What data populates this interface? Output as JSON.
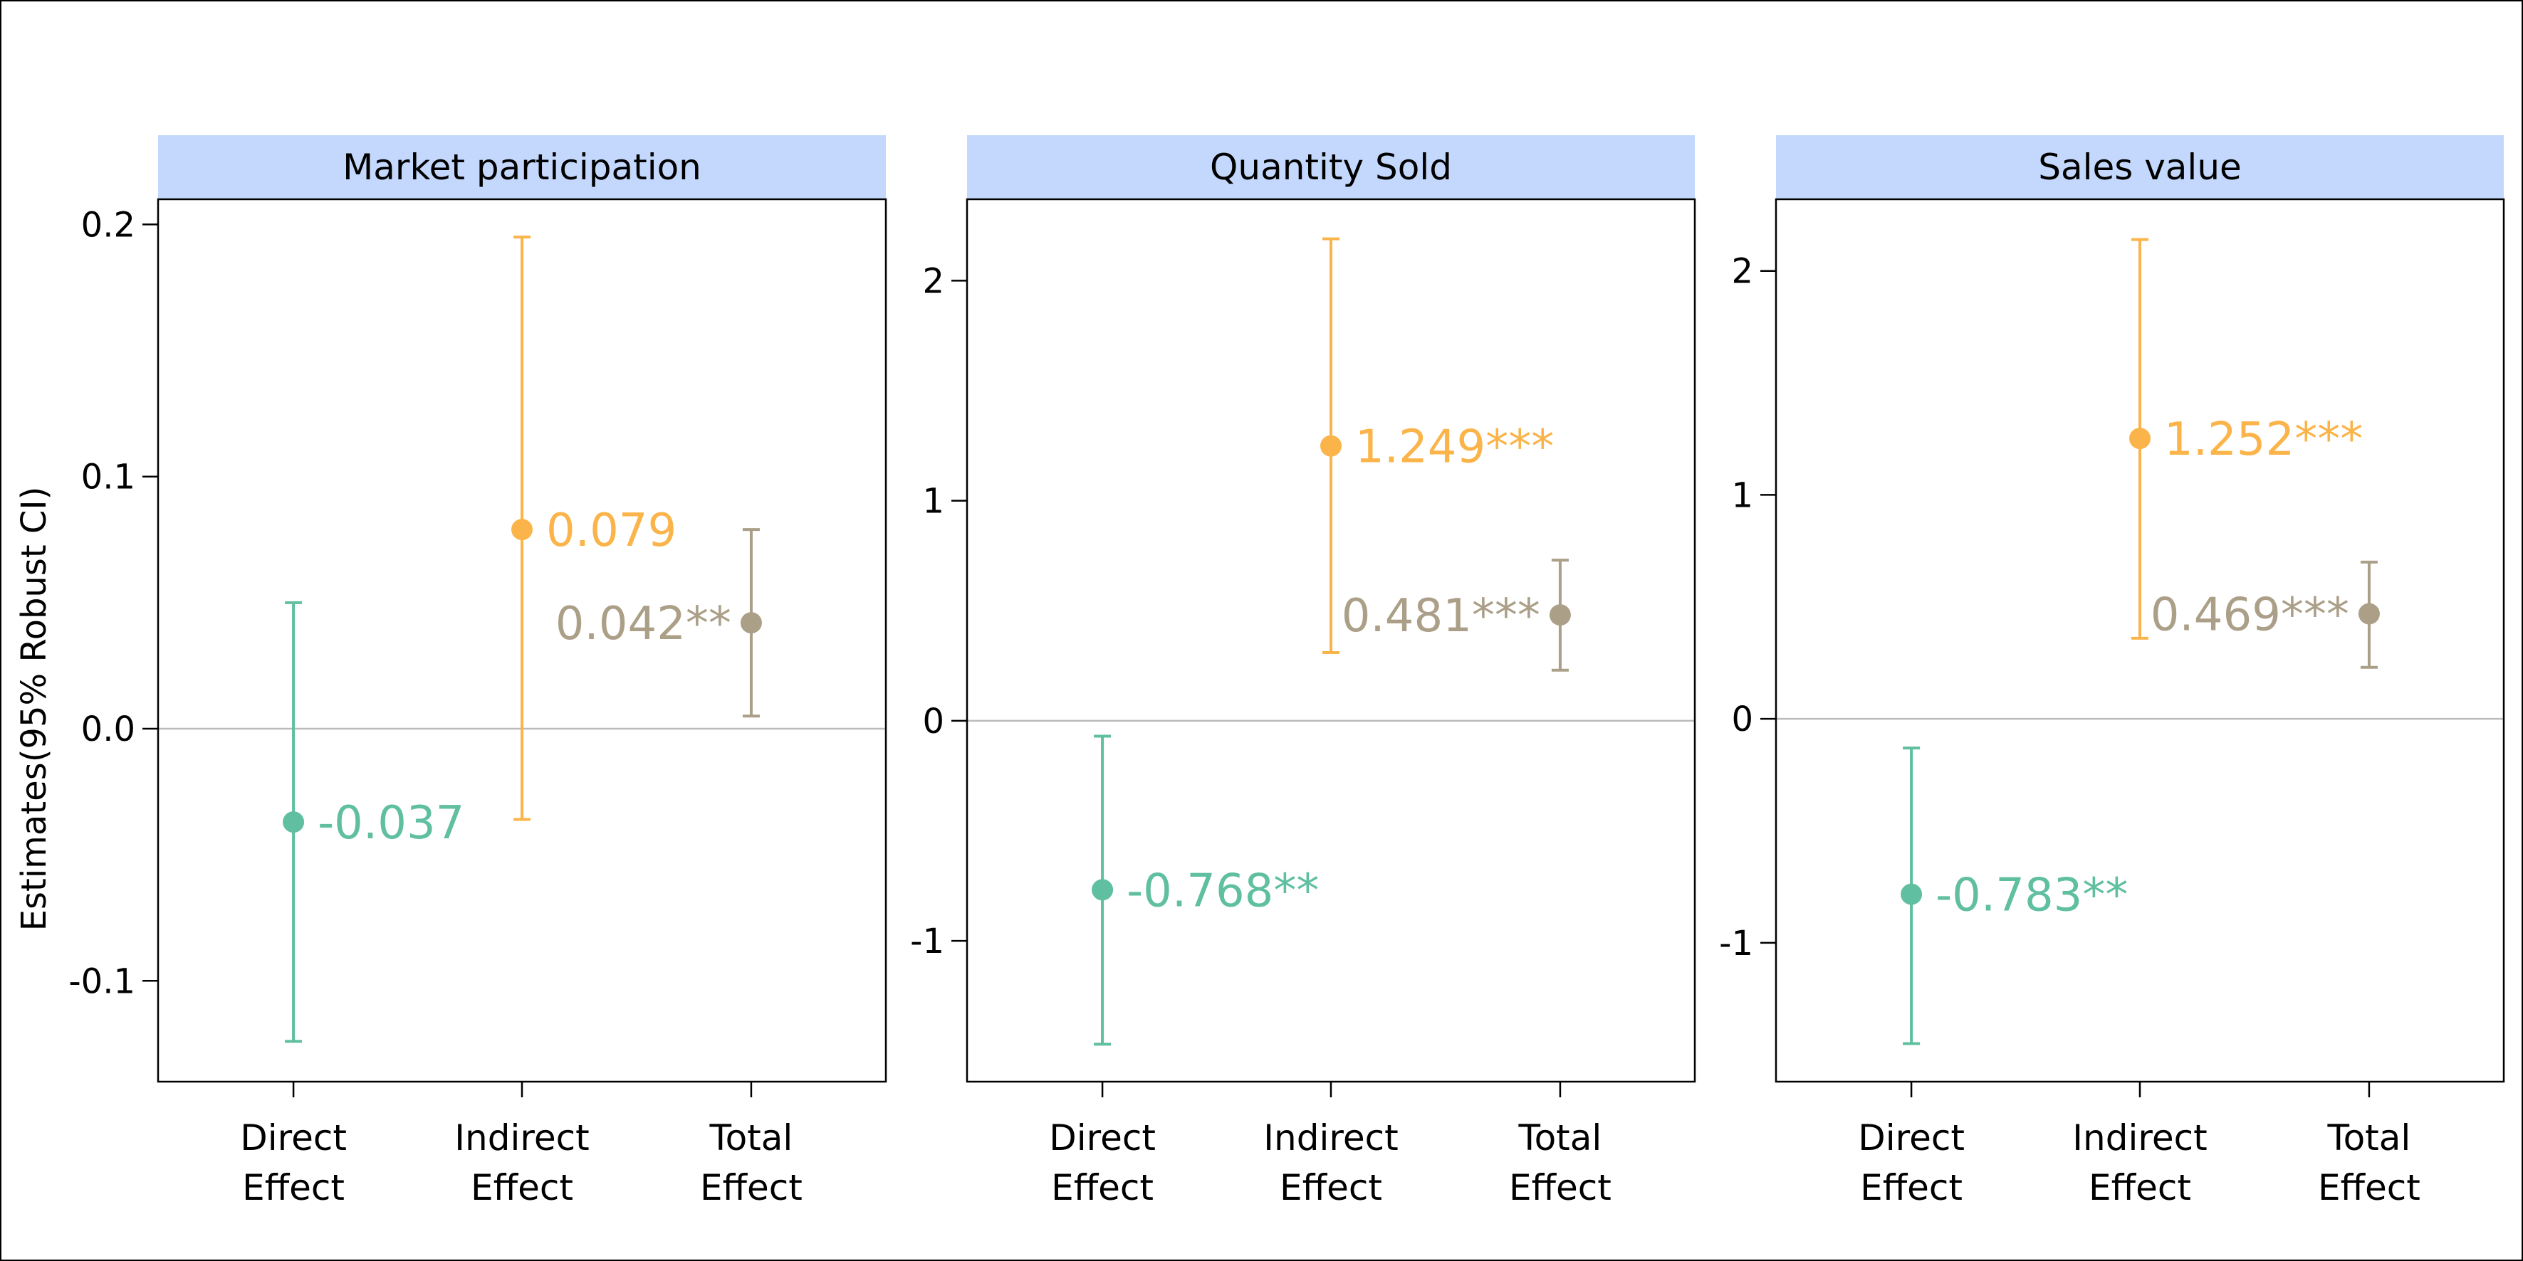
{
  "y_axis_label": "Estimates(95% Robust CI)",
  "category_labels": [
    [
      "Direct",
      "Effect"
    ],
    [
      "Indirect",
      "Effect"
    ],
    [
      "Total",
      "Effect"
    ]
  ],
  "colors": {
    "direct": "#5fbfa0",
    "indirect": "#fbb44a",
    "total": "#ab9f88",
    "strip": "#c3d8fc",
    "zero_line": "#bbbbbb",
    "axis": "#000000"
  },
  "chart_data": [
    {
      "type": "errorbar",
      "title": "Market participation",
      "ylim": [
        -0.14,
        0.21
      ],
      "yticks": [
        0.2,
        0.1,
        0.0,
        -0.1
      ],
      "ytick_labels": [
        "0.2",
        "0.1",
        "0.0",
        "-0.1"
      ],
      "categories": [
        "Direct Effect",
        "Indirect Effect",
        "Total Effect"
      ],
      "estimates": [
        -0.037,
        0.079,
        0.042
      ],
      "ci_lower": [
        -0.124,
        -0.036,
        0.005
      ],
      "ci_upper": [
        0.05,
        0.195,
        0.079
      ],
      "labels": [
        "-0.037",
        "0.079",
        "0.042**"
      ],
      "label_sides": [
        "right",
        "right",
        "left"
      ]
    },
    {
      "type": "errorbar",
      "title": "Quantity Sold",
      "ylim": [
        -1.64,
        2.37
      ],
      "yticks": [
        2,
        1,
        0,
        -1
      ],
      "ytick_labels": [
        "2",
        "1",
        "0",
        "-1"
      ],
      "categories": [
        "Direct Effect",
        "Indirect Effect",
        "Total Effect"
      ],
      "estimates": [
        -0.768,
        1.249,
        0.481
      ],
      "ci_lower": [
        -1.47,
        0.31,
        0.23
      ],
      "ci_upper": [
        -0.07,
        2.19,
        0.73
      ],
      "labels": [
        "-0.768**",
        "1.249***",
        "0.481***"
      ],
      "label_sides": [
        "right",
        "right",
        "left"
      ]
    },
    {
      "type": "errorbar",
      "title": "Sales value",
      "ylim": [
        -1.62,
        2.32
      ],
      "yticks": [
        2,
        1,
        0,
        -1
      ],
      "ytick_labels": [
        "2",
        "1",
        "0",
        "-1"
      ],
      "categories": [
        "Direct Effect",
        "Indirect Effect",
        "Total Effect"
      ],
      "estimates": [
        -0.783,
        1.252,
        0.469
      ],
      "ci_lower": [
        -1.45,
        0.36,
        0.23
      ],
      "ci_upper": [
        -0.13,
        2.14,
        0.7
      ],
      "labels": [
        "-0.783**",
        "1.252***",
        "0.469***"
      ],
      "label_sides": [
        "right",
        "right",
        "left"
      ]
    }
  ]
}
